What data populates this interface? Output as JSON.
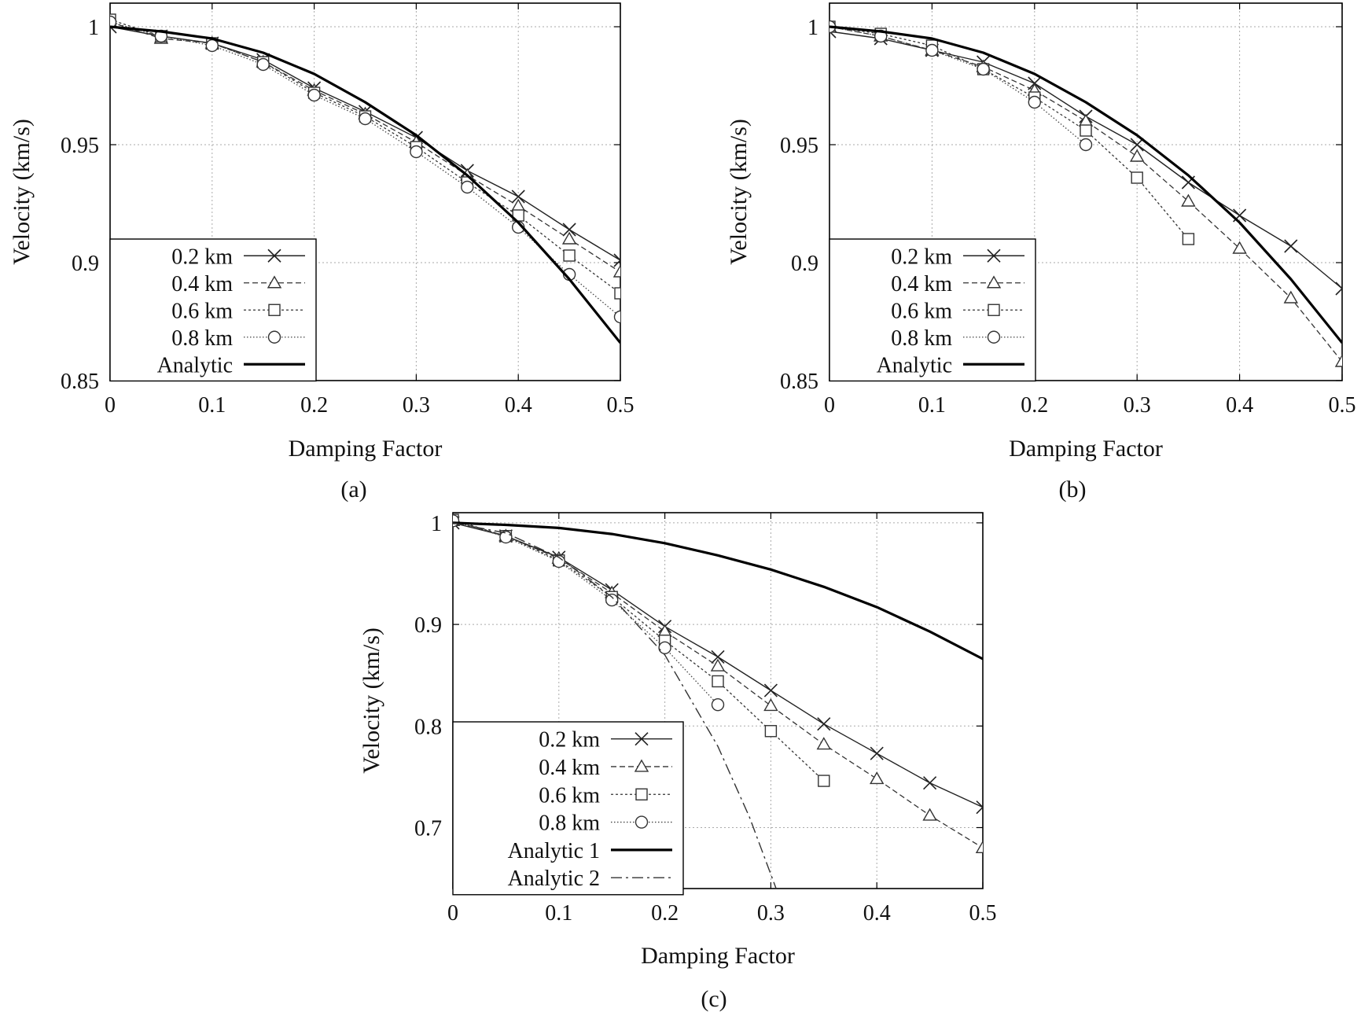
{
  "chart_data": [
    {
      "type": "line",
      "panel_label": "(a)",
      "xlabel": "Damping Factor",
      "ylabel": "Velocity (km/s)",
      "xlim": [
        0,
        0.5
      ],
      "ylim": [
        0.85,
        1.01
      ],
      "xticks": [
        0,
        0.1,
        0.2,
        0.3,
        0.4,
        0.5
      ],
      "xtick_labels": [
        "0",
        "0.1",
        "0.2",
        "0.3",
        "0.4",
        "0.5"
      ],
      "yticks": [
        0.85,
        0.9,
        0.95,
        1.0
      ],
      "ytick_labels": [
        "0.85",
        "0.9",
        "0.95",
        "1"
      ],
      "grid": true,
      "legend_position": "bottom-left",
      "series": [
        {
          "name": "0.2 km",
          "marker": "x",
          "dash": "solid",
          "x": [
            0,
            0.05,
            0.1,
            0.15,
            0.2,
            0.25,
            0.3,
            0.35,
            0.4,
            0.45,
            0.5
          ],
          "y": [
            1.0,
            0.996,
            0.993,
            0.986,
            0.974,
            0.964,
            0.953,
            0.939,
            0.928,
            0.914,
            0.901
          ]
        },
        {
          "name": "0.4 km",
          "marker": "triangle",
          "dash": "dashed",
          "x": [
            0,
            0.05,
            0.1,
            0.15,
            0.2,
            0.25,
            0.3,
            0.35,
            0.4,
            0.45,
            0.5
          ],
          "y": [
            1.002,
            0.995,
            0.993,
            0.985,
            0.973,
            0.963,
            0.951,
            0.937,
            0.924,
            0.91,
            0.896
          ]
        },
        {
          "name": "0.6 km",
          "marker": "square",
          "dash": "dotted",
          "x": [
            0,
            0.05,
            0.1,
            0.15,
            0.2,
            0.25,
            0.3,
            0.35,
            0.4,
            0.45,
            0.5
          ],
          "y": [
            1.003,
            0.996,
            0.993,
            0.985,
            0.972,
            0.962,
            0.949,
            0.934,
            0.92,
            0.903,
            0.887
          ]
        },
        {
          "name": "0.8 km",
          "marker": "circle",
          "dash": "fine-dotted",
          "x": [
            0,
            0.05,
            0.1,
            0.15,
            0.2,
            0.25,
            0.3,
            0.35,
            0.4,
            0.45,
            0.5
          ],
          "y": [
            1.002,
            0.996,
            0.992,
            0.984,
            0.971,
            0.961,
            0.947,
            0.932,
            0.915,
            0.895,
            0.877
          ]
        },
        {
          "name": "Analytic",
          "marker": "none",
          "dash": "thick",
          "x": [
            0,
            0.05,
            0.1,
            0.15,
            0.2,
            0.25,
            0.3,
            0.35,
            0.4,
            0.45,
            0.5
          ],
          "y": [
            1.0,
            0.998,
            0.995,
            0.989,
            0.98,
            0.968,
            0.954,
            0.937,
            0.917,
            0.893,
            0.866
          ]
        }
      ]
    },
    {
      "type": "line",
      "panel_label": "(b)",
      "xlabel": "Damping Factor",
      "ylabel": "Velocity (km/s)",
      "xlim": [
        0,
        0.5
      ],
      "ylim": [
        0.85,
        1.01
      ],
      "xticks": [
        0,
        0.1,
        0.2,
        0.3,
        0.4,
        0.5
      ],
      "xtick_labels": [
        "0",
        "0.1",
        "0.2",
        "0.3",
        "0.4",
        "0.5"
      ],
      "yticks": [
        0.85,
        0.9,
        0.95,
        1.0
      ],
      "ytick_labels": [
        "0.85",
        "0.9",
        "0.95",
        "1"
      ],
      "grid": true,
      "legend_position": "bottom-left",
      "series": [
        {
          "name": "0.2 km",
          "marker": "x",
          "dash": "solid",
          "x": [
            0,
            0.05,
            0.1,
            0.15,
            0.2,
            0.25,
            0.3,
            0.35,
            0.4,
            0.45,
            0.5
          ],
          "y": [
            0.998,
            0.995,
            0.99,
            0.985,
            0.976,
            0.962,
            0.95,
            0.934,
            0.92,
            0.907,
            0.889
          ]
        },
        {
          "name": "0.4 km",
          "marker": "triangle",
          "dash": "dashed",
          "x": [
            0,
            0.05,
            0.1,
            0.15,
            0.2,
            0.25,
            0.3,
            0.35,
            0.4,
            0.45,
            0.5
          ],
          "y": [
            1.0,
            0.996,
            0.99,
            0.983,
            0.973,
            0.96,
            0.945,
            0.926,
            0.906,
            0.885,
            0.858
          ]
        },
        {
          "name": "0.6 km",
          "marker": "square",
          "dash": "dotted",
          "x": [
            0,
            0.05,
            0.1,
            0.15,
            0.2,
            0.25,
            0.3,
            0.35
          ],
          "y": [
            1.0,
            0.997,
            0.992,
            0.982,
            0.97,
            0.956,
            0.936,
            0.91
          ]
        },
        {
          "name": "0.8 km",
          "marker": "circle",
          "dash": "fine-dotted",
          "x": [
            0,
            0.05,
            0.1,
            0.15,
            0.2,
            0.25
          ],
          "y": [
            1.0,
            0.996,
            0.99,
            0.982,
            0.968,
            0.95
          ]
        },
        {
          "name": "Analytic",
          "marker": "none",
          "dash": "thick",
          "x": [
            0,
            0.05,
            0.1,
            0.15,
            0.2,
            0.25,
            0.3,
            0.35,
            0.4,
            0.45,
            0.5
          ],
          "y": [
            1.0,
            0.998,
            0.995,
            0.989,
            0.98,
            0.968,
            0.954,
            0.937,
            0.917,
            0.893,
            0.866
          ]
        }
      ]
    },
    {
      "type": "line",
      "panel_label": "(c)",
      "xlabel": "Damping Factor",
      "ylabel": "Velocity (km/s)",
      "xlim": [
        0,
        0.5
      ],
      "ylim": [
        0.64,
        1.01
      ],
      "xticks": [
        0,
        0.1,
        0.2,
        0.3,
        0.4,
        0.5
      ],
      "xtick_labels": [
        "0",
        "0.1",
        "0.2",
        "0.3",
        "0.4",
        "0.5"
      ],
      "yticks": [
        0.7,
        0.8,
        0.9,
        1.0
      ],
      "ytick_labels": [
        "0.7",
        "0.8",
        "0.9",
        "1"
      ],
      "grid": true,
      "legend_position": "bottom-left",
      "series": [
        {
          "name": "0.2 km",
          "marker": "x",
          "dash": "solid",
          "x": [
            0,
            0.05,
            0.1,
            0.15,
            0.2,
            0.25,
            0.3,
            0.35,
            0.4,
            0.45,
            0.5
          ],
          "y": [
            1.0,
            0.987,
            0.966,
            0.934,
            0.898,
            0.868,
            0.835,
            0.802,
            0.773,
            0.744,
            0.72
          ]
        },
        {
          "name": "0.4 km",
          "marker": "triangle",
          "dash": "dashed",
          "x": [
            0,
            0.05,
            0.1,
            0.15,
            0.2,
            0.25,
            0.3,
            0.35,
            0.4,
            0.45,
            0.5
          ],
          "y": [
            1.002,
            0.987,
            0.965,
            0.931,
            0.893,
            0.859,
            0.82,
            0.782,
            0.748,
            0.712,
            0.68
          ]
        },
        {
          "name": "0.6 km",
          "marker": "square",
          "dash": "dotted",
          "x": [
            0,
            0.05,
            0.1,
            0.15,
            0.2,
            0.25,
            0.3,
            0.35
          ],
          "y": [
            1.003,
            0.987,
            0.963,
            0.927,
            0.884,
            0.844,
            0.795,
            0.746
          ]
        },
        {
          "name": "0.8 km",
          "marker": "circle",
          "dash": "fine-dotted",
          "x": [
            0,
            0.05,
            0.1,
            0.15,
            0.2,
            0.25
          ],
          "y": [
            1.002,
            0.986,
            0.962,
            0.924,
            0.877,
            0.821
          ]
        },
        {
          "name": "Analytic 1",
          "marker": "none",
          "dash": "thick",
          "x": [
            0,
            0.05,
            0.1,
            0.15,
            0.2,
            0.25,
            0.3,
            0.35,
            0.4,
            0.45,
            0.5
          ],
          "y": [
            1.0,
            0.998,
            0.995,
            0.989,
            0.98,
            0.968,
            0.954,
            0.937,
            0.917,
            0.893,
            0.866
          ]
        },
        {
          "name": "Analytic 2",
          "marker": "none",
          "dash": "dash-dot",
          "x": [
            0,
            0.05,
            0.1,
            0.15,
            0.2,
            0.25,
            0.28,
            0.305
          ],
          "y": [
            1.0,
            0.99,
            0.966,
            0.927,
            0.87,
            0.78,
            0.71,
            0.64
          ]
        }
      ]
    }
  ]
}
